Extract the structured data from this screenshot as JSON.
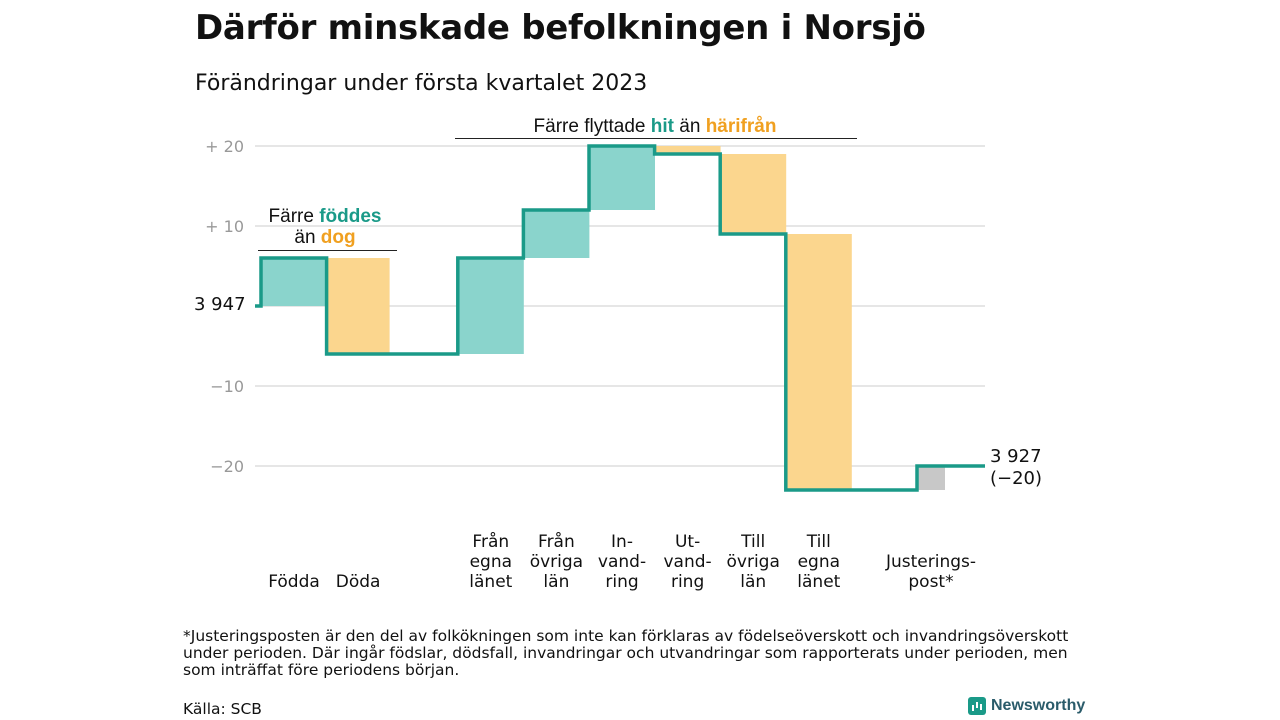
{
  "title": "Därför minskade befolkningen i Norsjö",
  "subtitle": "Förändringar under första kvartalet 2023",
  "colors": {
    "increase": "#8ad4cc",
    "decrease": "#fbd68e",
    "adjustment": "#c8c8c8",
    "line": "#1a9a88",
    "grid": "#dddddd"
  },
  "annotations": {
    "births": {
      "line1_pre": "Färre ",
      "line1_in": "föddes",
      "line2_pre": "än ",
      "line2_out": "dog"
    },
    "migration": {
      "pre": "Färre flyttade ",
      "in": "hit",
      "mid": " än ",
      "out": "härifrån"
    }
  },
  "chart_data": {
    "type": "waterfall",
    "title": "Därför minskade befolkningen i Norsjö",
    "subtitle": "Förändringar under första kvartalet 2023",
    "start_value": 3947,
    "start_label": "3 947",
    "end_value": 3927,
    "end_label": "3 927",
    "end_change_label": "(−20)",
    "y_ticks": [
      {
        "value": 20,
        "label": "+ 20"
      },
      {
        "value": 10,
        "label": "+ 10"
      },
      {
        "value": -10,
        "label": "−10"
      },
      {
        "value": -20,
        "label": "−20"
      }
    ],
    "ylim": [
      -23,
      20
    ],
    "grid": true,
    "categories": [
      {
        "lines": [
          "Födda"
        ],
        "change": 6,
        "kind": "increase"
      },
      {
        "lines": [
          "Döda"
        ],
        "change": -12,
        "kind": "decrease"
      },
      {
        "lines": [
          "Från",
          "egna",
          "länet"
        ],
        "change": 12,
        "kind": "increase"
      },
      {
        "lines": [
          "Från",
          "övriga",
          "län"
        ],
        "change": 6,
        "kind": "increase"
      },
      {
        "lines": [
          "In-",
          "vand-",
          "ring"
        ],
        "change": 8,
        "kind": "increase"
      },
      {
        "lines": [
          "Ut-",
          "vand-",
          "ring"
        ],
        "change": -1,
        "kind": "decrease"
      },
      {
        "lines": [
          "Till",
          "övriga",
          "län"
        ],
        "change": -10,
        "kind": "decrease"
      },
      {
        "lines": [
          "Till",
          "egna",
          "länet"
        ],
        "change": -32,
        "kind": "decrease"
      },
      {
        "lines": [
          "Justerings-",
          "post*"
        ],
        "change": 3,
        "kind": "adjustment"
      }
    ]
  },
  "footnote": "*Justeringsposten är den del av folkökningen som inte kan förklaras av födelseöverskott och invandringsöverskott under perioden. Där ingår födslar, dödsfall, invandringar och utvandringar som rapporterats under perioden, men som inträffat före periodens början.",
  "source": "Källa: SCB",
  "brand": "Newsworthy"
}
